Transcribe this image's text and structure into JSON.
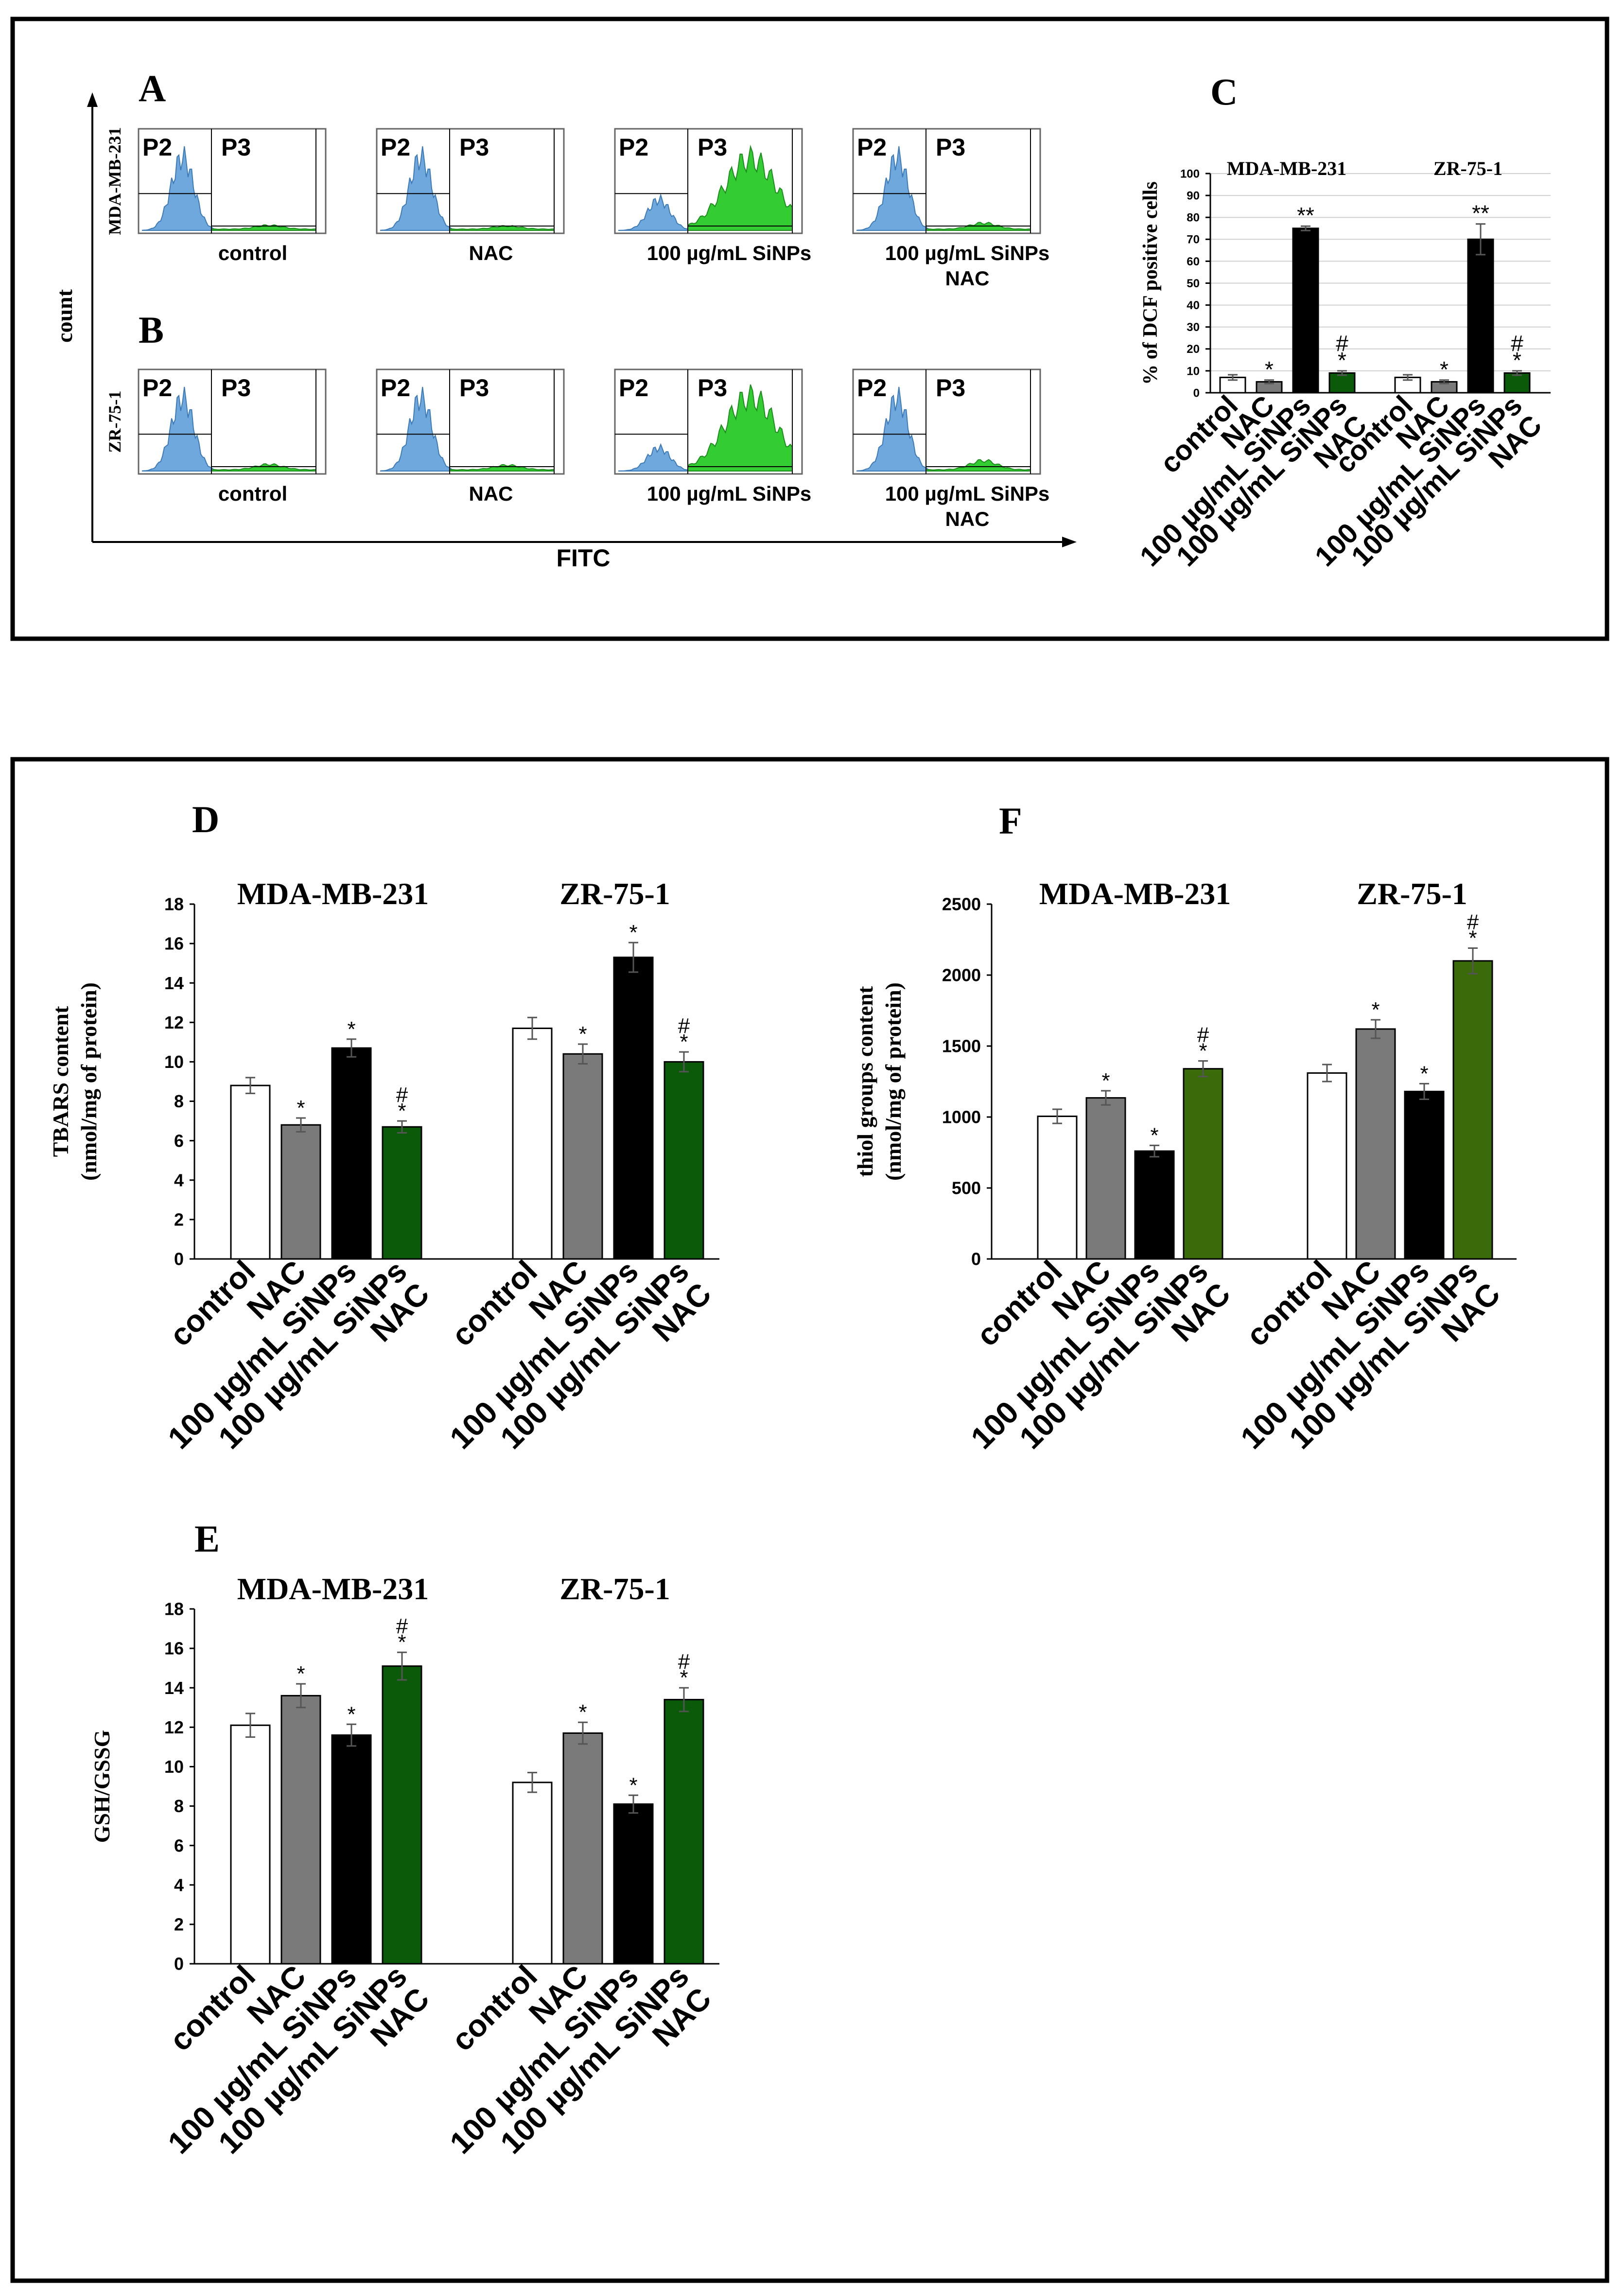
{
  "colors": {
    "control": "#ffffff",
    "nac": "#7a7a7a",
    "sinps": "#000000",
    "sinps_nac_dark": "#0a5a0a",
    "sinps_nac_olive": "#3a6a0a",
    "hist_blue": "#6fa8dc",
    "hist_green": "#33cc33"
  },
  "panel_top": {
    "letter_a": "A",
    "letter_b": "B",
    "letter_c": "C",
    "count_label": "count",
    "fitc_label": "FITC",
    "flow": {
      "rows": [
        {
          "row_label": "MDA-MB-231",
          "histograms": [
            {
              "gate_left": "P2",
              "gate_right": "P3",
              "caption": [
                "control"
              ],
              "blue_peak": 0.95,
              "green_peak": 0.05
            },
            {
              "gate_left": "P2",
              "gate_right": "P3",
              "caption": [
                "NAC"
              ],
              "blue_peak": 0.95,
              "green_peak": 0.04
            },
            {
              "gate_left": "P2",
              "gate_right": "P3",
              "caption": [
                "100 µg/mL SiNPs"
              ],
              "blue_peak": 0.4,
              "green_peak": 0.92
            },
            {
              "gate_left": "P2",
              "gate_right": "P3",
              "caption": [
                "100 µg/mL SiNPs",
                "NAC"
              ],
              "blue_peak": 0.95,
              "green_peak": 0.08
            }
          ]
        },
        {
          "row_label": "ZR-75-1",
          "histograms": [
            {
              "gate_left": "P2",
              "gate_right": "P3",
              "caption": [
                "control"
              ],
              "blue_peak": 0.95,
              "green_peak": 0.07
            },
            {
              "gate_left": "P2",
              "gate_right": "P3",
              "caption": [
                "NAC"
              ],
              "blue_peak": 0.95,
              "green_peak": 0.06
            },
            {
              "gate_left": "P2",
              "gate_right": "P3",
              "caption": [
                "100 µg/mL SiNPs"
              ],
              "blue_peak": 0.3,
              "green_peak": 0.95
            },
            {
              "gate_left": "P2",
              "gate_right": "P3",
              "caption": [
                "100 µg/mL SiNPs",
                "NAC"
              ],
              "blue_peak": 0.95,
              "green_peak": 0.12
            }
          ]
        }
      ]
    }
  },
  "panel_letters": {
    "d": "D",
    "e": "E",
    "f": "F"
  },
  "chart_data": [
    {
      "id": "C",
      "type": "bar",
      "ylabel": "% of DCF positive cells",
      "ylim": [
        0,
        100
      ],
      "yticks": [
        0,
        10,
        20,
        30,
        40,
        50,
        60,
        70,
        80,
        90,
        100
      ],
      "grid": true,
      "groups": [
        "MDA-MB-231",
        "ZR-75-1"
      ],
      "categories": [
        "control",
        "NAC",
        "100 µg/mL SiNPs",
        "100 µg/mL SiNPs NAC"
      ],
      "category_lines": [
        [
          "control"
        ],
        [
          "NAC"
        ],
        [
          "100 µg/mL SiNPs"
        ],
        [
          "100 µg/mL SiNPs",
          "NAC"
        ]
      ],
      "series": [
        {
          "name": "MDA-MB-231",
          "values": [
            7,
            5,
            75,
            9
          ],
          "errors": [
            1.2,
            0.8,
            1,
            1
          ],
          "annotations": [
            "",
            "*",
            "**",
            "#|*"
          ]
        },
        {
          "name": "ZR-75-1",
          "values": [
            7,
            5,
            70,
            9
          ],
          "errors": [
            1.2,
            0.8,
            7,
            1
          ],
          "annotations": [
            "",
            "*",
            "**",
            "#|*"
          ]
        }
      ]
    },
    {
      "id": "D",
      "type": "bar",
      "ylabel": [
        "TBARS content",
        "(nmol/mg of protein)"
      ],
      "ylim": [
        0,
        18
      ],
      "yticks": [
        0,
        2,
        4,
        6,
        8,
        10,
        12,
        14,
        16,
        18
      ],
      "grid": false,
      "groups": [
        "MDA-MB-231",
        "ZR-75-1"
      ],
      "categories": [
        "control",
        "NAC",
        "100 µg/mL SiNPs",
        "100 µg/mL SiNPs NAC"
      ],
      "category_lines": [
        [
          "control"
        ],
        [
          "NAC"
        ],
        [
          "100 µg/mL SiNPs"
        ],
        [
          "100 µg/mL SiNPs",
          "NAC"
        ]
      ],
      "series": [
        {
          "name": "MDA-MB-231",
          "values": [
            8.8,
            6.8,
            10.7,
            6.7
          ],
          "errors": [
            0.4,
            0.35,
            0.45,
            0.3
          ],
          "annotations": [
            "",
            "*",
            "*",
            "#|*"
          ]
        },
        {
          "name": "ZR-75-1",
          "values": [
            11.7,
            10.4,
            15.3,
            10.0
          ],
          "errors": [
            0.55,
            0.5,
            0.75,
            0.5
          ],
          "annotations": [
            "",
            "*",
            "*",
            "#|*"
          ]
        }
      ]
    },
    {
      "id": "E",
      "type": "bar",
      "ylabel": [
        "GSH/GSSG"
      ],
      "ylim": [
        0,
        18
      ],
      "yticks": [
        0,
        2,
        4,
        6,
        8,
        10,
        12,
        14,
        16,
        18
      ],
      "grid": false,
      "groups": [
        "MDA-MB-231",
        "ZR-75-1"
      ],
      "categories": [
        "control",
        "NAC",
        "100 µg/mL SiNPs",
        "100 µg/mL SiNPs NAC"
      ],
      "category_lines": [
        [
          "control"
        ],
        [
          "NAC"
        ],
        [
          "100 µg/mL SiNPs"
        ],
        [
          "100 µg/mL SiNPs",
          "NAC"
        ]
      ],
      "series": [
        {
          "name": "MDA-MB-231",
          "values": [
            12.1,
            13.6,
            11.6,
            15.1
          ],
          "errors": [
            0.6,
            0.6,
            0.55,
            0.7
          ],
          "annotations": [
            "",
            "*",
            "*",
            "#|*"
          ]
        },
        {
          "name": "ZR-75-1",
          "values": [
            9.2,
            11.7,
            8.1,
            13.4
          ],
          "errors": [
            0.5,
            0.55,
            0.45,
            0.6
          ],
          "annotations": [
            "",
            "*",
            "*",
            "#|*"
          ]
        }
      ]
    },
    {
      "id": "F",
      "type": "bar",
      "ylabel": [
        "thiol groups content",
        "(nmol/mg of protein)"
      ],
      "ylim": [
        0,
        2500
      ],
      "yticks": [
        0,
        500,
        1000,
        1500,
        2000,
        2500
      ],
      "grid": false,
      "groups": [
        "MDA-MB-231",
        "ZR-75-1"
      ],
      "categories": [
        "control",
        "NAC",
        "100 µg/mL SiNPs",
        "100 µg/mL SiNPs NAC"
      ],
      "category_lines": [
        [
          "control"
        ],
        [
          "NAC"
        ],
        [
          "100 µg/mL SiNPs"
        ],
        [
          "100 µg/mL SiNPs",
          "NAC"
        ]
      ],
      "series": [
        {
          "name": "MDA-MB-231",
          "values": [
            1005,
            1135,
            760,
            1340
          ],
          "errors": [
            50,
            50,
            40,
            55
          ],
          "annotations": [
            "",
            "*",
            "*",
            "#|*"
          ]
        },
        {
          "name": "ZR-75-1",
          "values": [
            1310,
            1620,
            1180,
            2100
          ],
          "errors": [
            60,
            65,
            55,
            90
          ],
          "annotations": [
            "",
            "*",
            "*",
            "#|*"
          ]
        }
      ]
    }
  ]
}
